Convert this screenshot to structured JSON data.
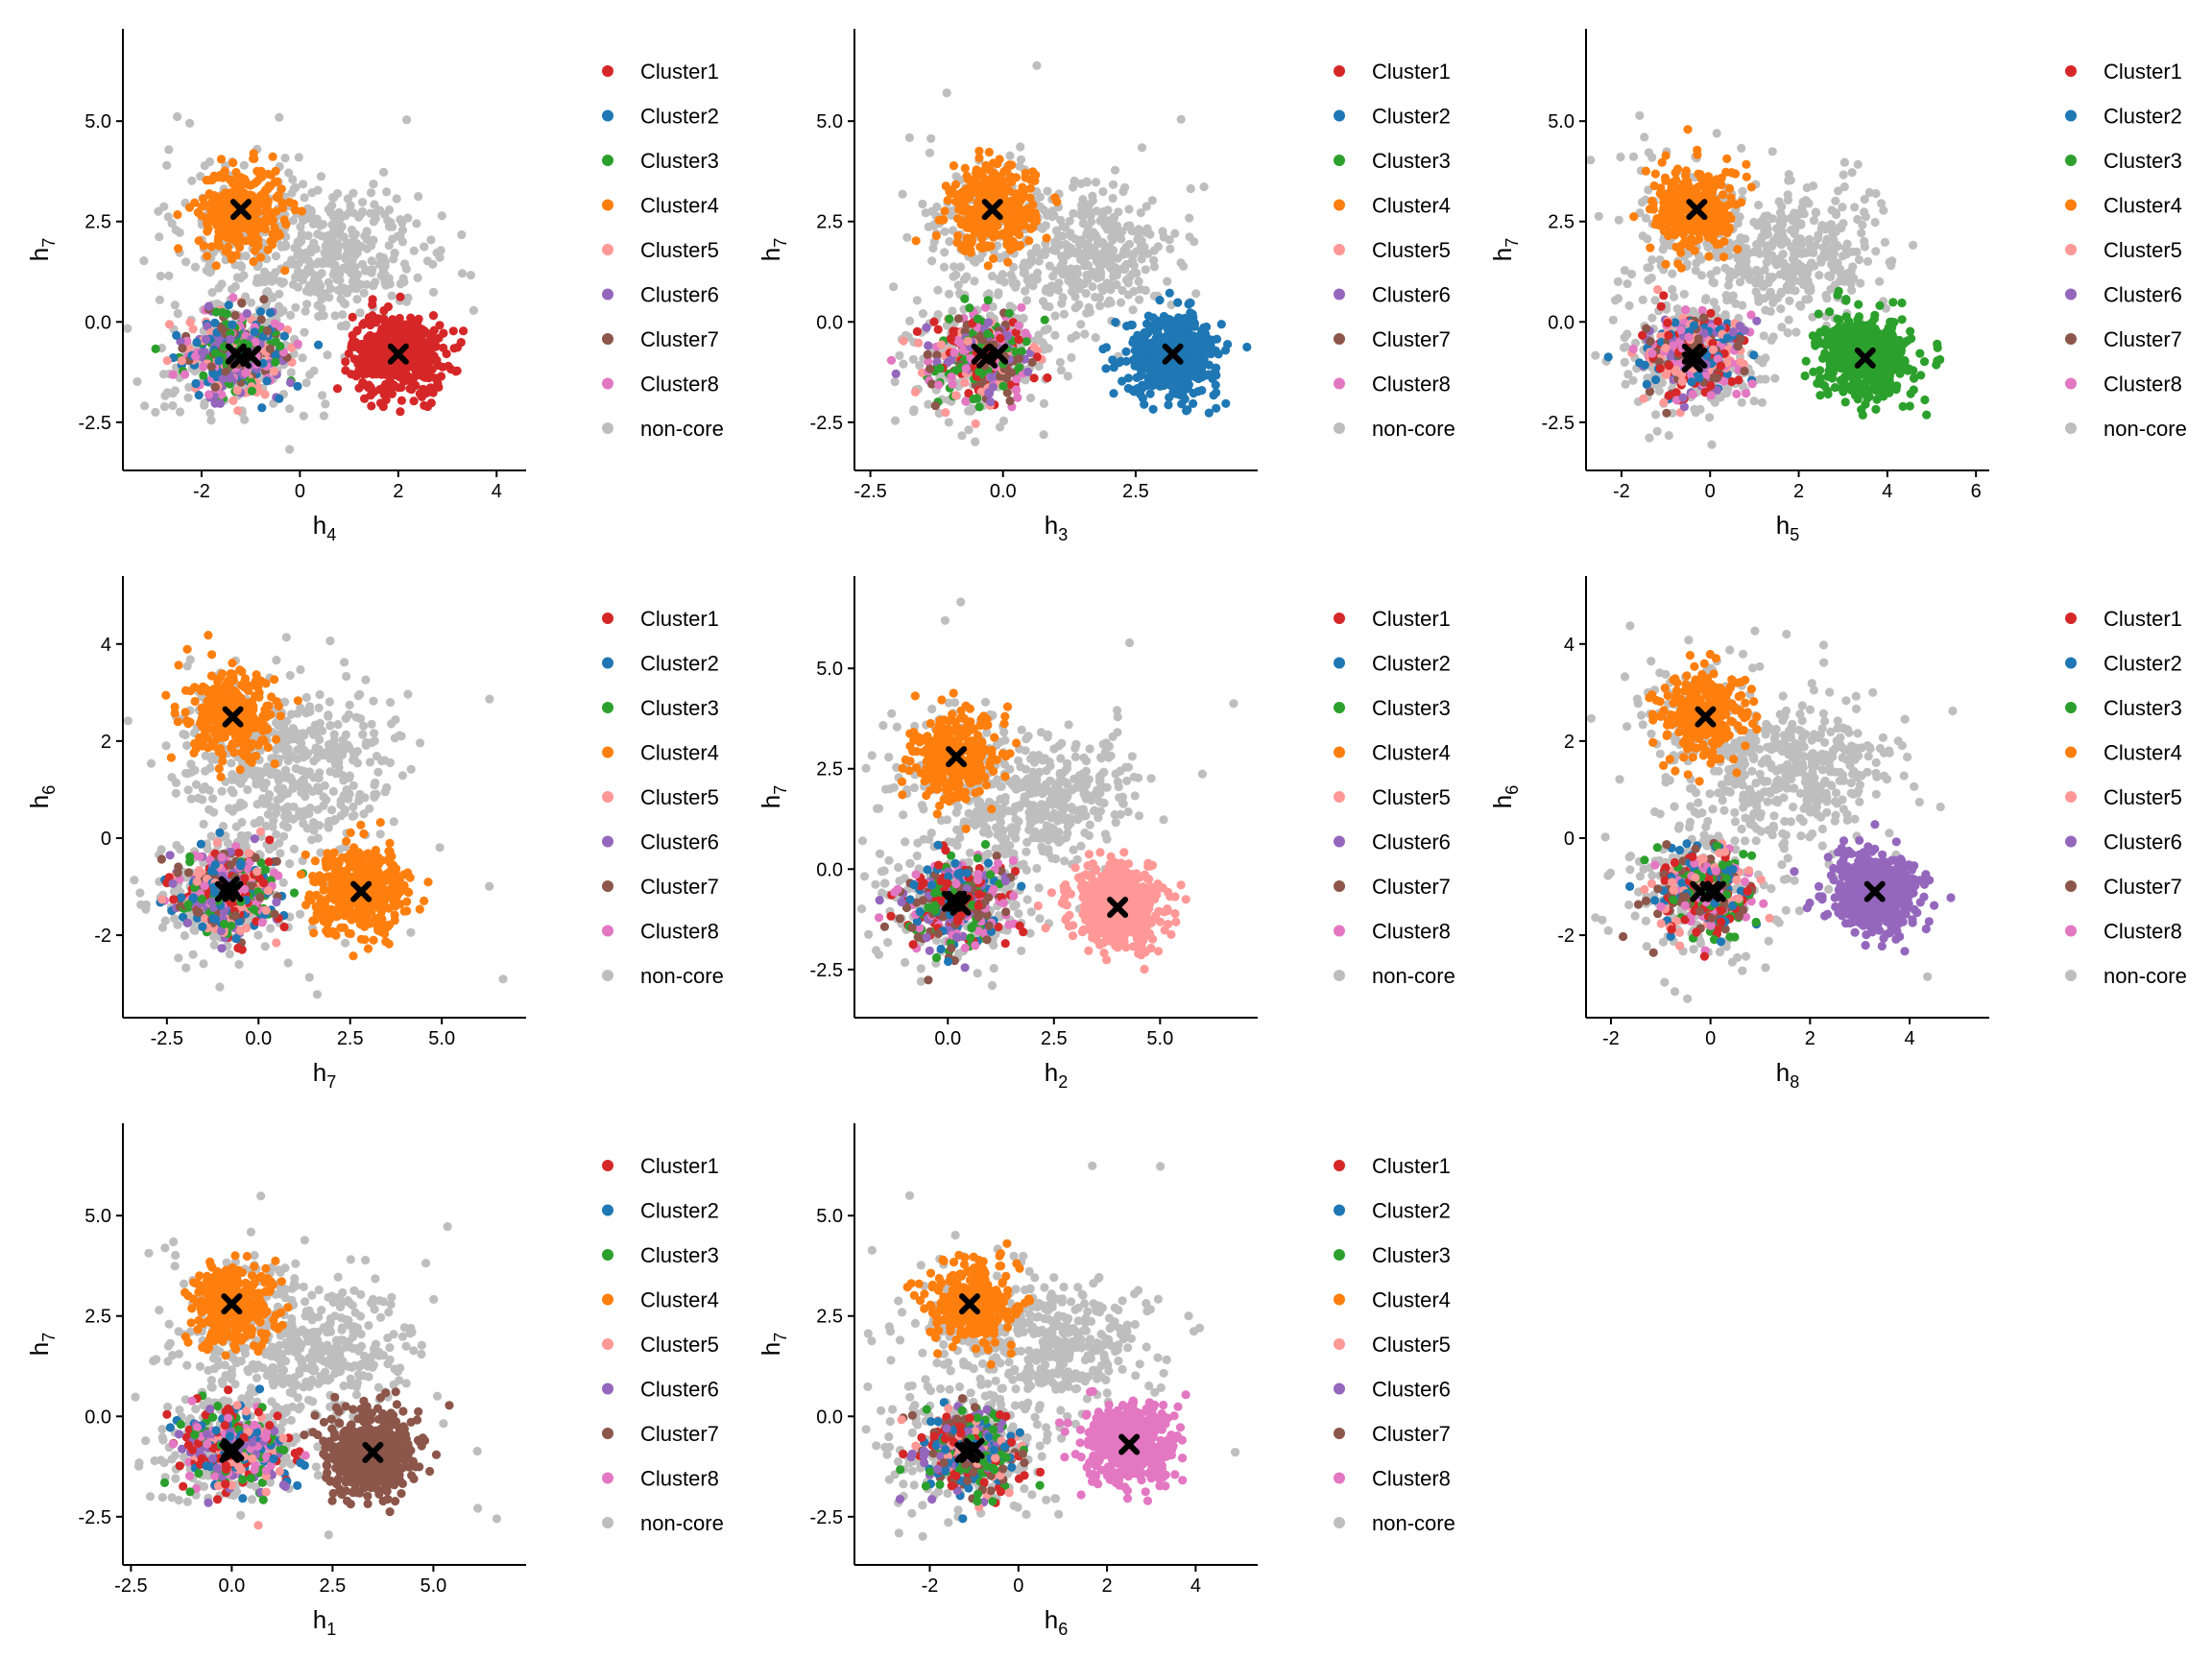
{
  "colors": {
    "Cluster1": "#d62728",
    "Cluster2": "#1f77b4",
    "Cluster3": "#2ca02c",
    "Cluster4": "#ff7f0e",
    "Cluster5": "#ff9896",
    "Cluster6": "#9467bd",
    "Cluster7": "#8c564b",
    "Cluster8": "#e377c2",
    "non-core": "#bebebe",
    "centroid": "#000000"
  },
  "legend": [
    "Cluster1",
    "Cluster2",
    "Cluster3",
    "Cluster4",
    "Cluster5",
    "Cluster6",
    "Cluster7",
    "Cluster8",
    "non-core"
  ],
  "chart_data": [
    {
      "type": "scatter",
      "xlabel": {
        "base": "h",
        "sub": "4"
      },
      "ylabel": {
        "base": "h",
        "sub": "7"
      },
      "xlim": [
        -3.6,
        4.6
      ],
      "ylim": [
        -3.7,
        7.3
      ],
      "xticks": [
        {
          "v": -2,
          "label": "-2"
        },
        {
          "v": 0,
          "label": "0"
        },
        {
          "v": 2,
          "label": "2"
        },
        {
          "v": 4,
          "label": "4"
        }
      ],
      "yticks": [
        {
          "v": -2.5,
          "label": "-2.5"
        },
        {
          "v": 0,
          "label": "0.0"
        },
        {
          "v": 2.5,
          "label": "2.5"
        },
        {
          "v": 5,
          "label": "5.0"
        }
      ],
      "highlight": "Cluster1",
      "centroids": [
        {
          "x": 2.0,
          "y": -0.8
        },
        {
          "x": -1.2,
          "y": 2.8
        },
        {
          "x": -1.3,
          "y": -0.8
        },
        {
          "x": -1.0,
          "y": -0.85
        },
        {
          "x": -1.2,
          "y": -0.9
        }
      ]
    },
    {
      "type": "scatter",
      "xlabel": {
        "base": "h",
        "sub": "3"
      },
      "ylabel": {
        "base": "h",
        "sub": "7"
      },
      "xlim": [
        -2.8,
        4.8
      ],
      "ylim": [
        -3.7,
        7.3
      ],
      "xticks": [
        {
          "v": -2.5,
          "label": "-2.5"
        },
        {
          "v": 0,
          "label": "0.0"
        },
        {
          "v": 2.5,
          "label": "2.5"
        }
      ],
      "yticks": [
        {
          "v": -2.5,
          "label": "-2.5"
        },
        {
          "v": 0,
          "label": "0.0"
        },
        {
          "v": 2.5,
          "label": "2.5"
        },
        {
          "v": 5,
          "label": "5.0"
        }
      ],
      "highlight": "Cluster2",
      "centroids": [
        {
          "x": 3.2,
          "y": -0.8
        },
        {
          "x": -0.2,
          "y": 2.8
        },
        {
          "x": -0.4,
          "y": -0.8
        },
        {
          "x": -0.1,
          "y": -0.8
        },
        {
          "x": -0.3,
          "y": -0.9
        }
      ]
    },
    {
      "type": "scatter",
      "xlabel": {
        "base": "h",
        "sub": "5"
      },
      "ylabel": {
        "base": "h",
        "sub": "7"
      },
      "xlim": [
        -2.8,
        6.3
      ],
      "ylim": [
        -3.7,
        7.3
      ],
      "xticks": [
        {
          "v": -2,
          "label": "-2"
        },
        {
          "v": 0,
          "label": "0"
        },
        {
          "v": 2,
          "label": "2"
        },
        {
          "v": 4,
          "label": "4"
        },
        {
          "v": 6,
          "label": "6"
        }
      ],
      "yticks": [
        {
          "v": -2.5,
          "label": "-2.5"
        },
        {
          "v": 0,
          "label": "0.0"
        },
        {
          "v": 2.5,
          "label": "2.5"
        },
        {
          "v": 5,
          "label": "5.0"
        }
      ],
      "highlight": "Cluster3",
      "centroids": [
        {
          "x": 3.5,
          "y": -0.9
        },
        {
          "x": -0.3,
          "y": 2.8
        },
        {
          "x": -0.4,
          "y": -0.8
        },
        {
          "x": -0.3,
          "y": -0.9
        },
        {
          "x": -0.4,
          "y": -1.0
        }
      ]
    },
    {
      "type": "scatter",
      "xlabel": {
        "base": "h",
        "sub": "7"
      },
      "ylabel": {
        "base": "h",
        "sub": "6"
      },
      "xlim": [
        -3.7,
        7.3
      ],
      "ylim": [
        -3.7,
        5.4
      ],
      "xticks": [
        {
          "v": -2.5,
          "label": "-2.5"
        },
        {
          "v": 0,
          "label": "0.0"
        },
        {
          "v": 2.5,
          "label": "2.5"
        },
        {
          "v": 5,
          "label": "5.0"
        }
      ],
      "yticks": [
        {
          "v": -2,
          "label": "-2"
        },
        {
          "v": 0,
          "label": "0"
        },
        {
          "v": 2,
          "label": "2"
        },
        {
          "v": 4,
          "label": "4"
        }
      ],
      "highlight": "Cluster4",
      "centroids": [
        {
          "x": 2.8,
          "y": -1.1
        },
        {
          "x": -0.7,
          "y": 2.5
        },
        {
          "x": -0.9,
          "y": -1.1
        },
        {
          "x": -0.8,
          "y": -1.0
        },
        {
          "x": -0.7,
          "y": -1.1
        }
      ]
    },
    {
      "type": "scatter",
      "xlabel": {
        "base": "h",
        "sub": "2"
      },
      "ylabel": {
        "base": "h",
        "sub": "7"
      },
      "xlim": [
        -2.2,
        7.3
      ],
      "ylim": [
        -3.7,
        7.3
      ],
      "xticks": [
        {
          "v": 0,
          "label": "0.0"
        },
        {
          "v": 2.5,
          "label": "2.5"
        },
        {
          "v": 5,
          "label": "5.0"
        }
      ],
      "yticks": [
        {
          "v": -2.5,
          "label": "-2.5"
        },
        {
          "v": 0,
          "label": "0.0"
        },
        {
          "v": 2.5,
          "label": "2.5"
        },
        {
          "v": 5,
          "label": "5.0"
        }
      ],
      "highlight": "Cluster5",
      "centroids": [
        {
          "x": 4.0,
          "y": -0.95
        },
        {
          "x": 0.2,
          "y": 2.8
        },
        {
          "x": 0.2,
          "y": -0.8
        },
        {
          "x": 0.3,
          "y": -0.9
        },
        {
          "x": 0.1,
          "y": -0.8
        }
      ]
    },
    {
      "type": "scatter",
      "xlabel": {
        "base": "h",
        "sub": "8"
      },
      "ylabel": {
        "base": "h",
        "sub": "6"
      },
      "xlim": [
        -2.5,
        5.6
      ],
      "ylim": [
        -3.7,
        5.4
      ],
      "xticks": [
        {
          "v": -2,
          "label": "-2"
        },
        {
          "v": 0,
          "label": "0"
        },
        {
          "v": 2,
          "label": "2"
        },
        {
          "v": 4,
          "label": "4"
        }
      ],
      "yticks": [
        {
          "v": -2,
          "label": "-2"
        },
        {
          "v": 0,
          "label": "0"
        },
        {
          "v": 2,
          "label": "2"
        },
        {
          "v": 4,
          "label": "4"
        }
      ],
      "highlight": "Cluster6",
      "centroids": [
        {
          "x": 3.3,
          "y": -1.1
        },
        {
          "x": -0.1,
          "y": 2.5
        },
        {
          "x": -0.2,
          "y": -1.1
        },
        {
          "x": 0.0,
          "y": -1.1
        },
        {
          "x": 0.1,
          "y": -1.1
        }
      ]
    },
    {
      "type": "scatter",
      "xlabel": {
        "base": "h",
        "sub": "1"
      },
      "ylabel": {
        "base": "h",
        "sub": "7"
      },
      "xlim": [
        -2.7,
        7.3
      ],
      "ylim": [
        -3.7,
        7.3
      ],
      "xticks": [
        {
          "v": -2.5,
          "label": "-2.5"
        },
        {
          "v": 0,
          "label": "0.0"
        },
        {
          "v": 2.5,
          "label": "2.5"
        },
        {
          "v": 5,
          "label": "5.0"
        }
      ],
      "yticks": [
        {
          "v": -2.5,
          "label": "-2.5"
        },
        {
          "v": 0,
          "label": "0.0"
        },
        {
          "v": 2.5,
          "label": "2.5"
        },
        {
          "v": 5,
          "label": "5.0"
        }
      ],
      "highlight": "Cluster7",
      "centroids": [
        {
          "x": 3.5,
          "y": -0.9
        },
        {
          "x": 0.0,
          "y": 2.8
        },
        {
          "x": 0.0,
          "y": -0.8
        },
        {
          "x": -0.05,
          "y": -0.9
        },
        {
          "x": 0.05,
          "y": -0.85
        }
      ]
    },
    {
      "type": "scatter",
      "xlabel": {
        "base": "h",
        "sub": "6"
      },
      "ylabel": {
        "base": "h",
        "sub": "7"
      },
      "xlim": [
        -3.7,
        5.4
      ],
      "ylim": [
        -3.7,
        7.3
      ],
      "xticks": [
        {
          "v": -2,
          "label": "-2"
        },
        {
          "v": 0,
          "label": "0"
        },
        {
          "v": 2,
          "label": "2"
        },
        {
          "v": 4,
          "label": "4"
        }
      ],
      "yticks": [
        {
          "v": -2.5,
          "label": "-2.5"
        },
        {
          "v": 0,
          "label": "0.0"
        },
        {
          "v": 2.5,
          "label": "2.5"
        },
        {
          "v": 5,
          "label": "5.0"
        }
      ],
      "highlight": "Cluster8",
      "centroids": [
        {
          "x": 2.5,
          "y": -0.7
        },
        {
          "x": -1.1,
          "y": 2.8
        },
        {
          "x": -1.1,
          "y": -0.9
        },
        {
          "x": -1.0,
          "y": -0.8
        },
        {
          "x": -1.2,
          "y": -0.9
        }
      ]
    }
  ]
}
